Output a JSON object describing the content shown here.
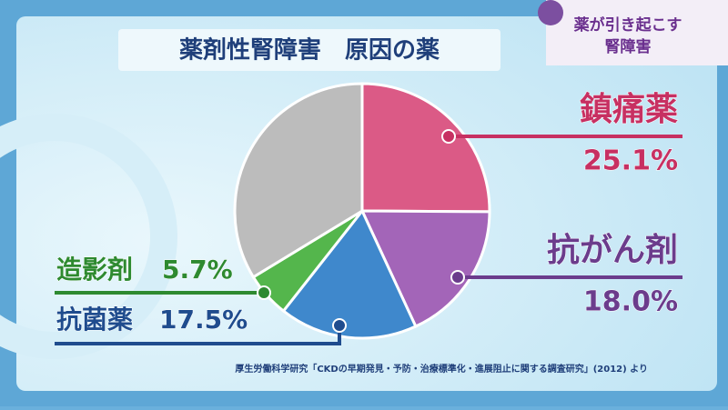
{
  "chart_data": {
    "type": "pie",
    "title": "薬剤性腎障害　原因の薬",
    "badge": [
      "薬が引き起こす",
      "腎障害"
    ],
    "source": "厚生労働科学研究「CKDの早期発見・予防・治療標準化・進展阻止に関する調査研究」(2012) より",
    "categories": [
      "鎮痛薬",
      "抗がん剤",
      "抗菌薬",
      "造影剤",
      null
    ],
    "values": [
      25.1,
      18.0,
      17.5,
      5.7,
      33.7
    ],
    "value_labels": [
      "25.1%",
      "18.0%",
      "17.5%",
      "5.7%",
      null
    ],
    "colors": [
      "#db5a86",
      "#a365b8",
      "#3f88cc",
      "#54b64c",
      "#bcbcbc"
    ],
    "label_colors": [
      "#c73062",
      "#6b3c8c",
      "#1f4c8e",
      "#2e8a30",
      null
    ],
    "start_angle": 0,
    "direction": "clockwise"
  }
}
